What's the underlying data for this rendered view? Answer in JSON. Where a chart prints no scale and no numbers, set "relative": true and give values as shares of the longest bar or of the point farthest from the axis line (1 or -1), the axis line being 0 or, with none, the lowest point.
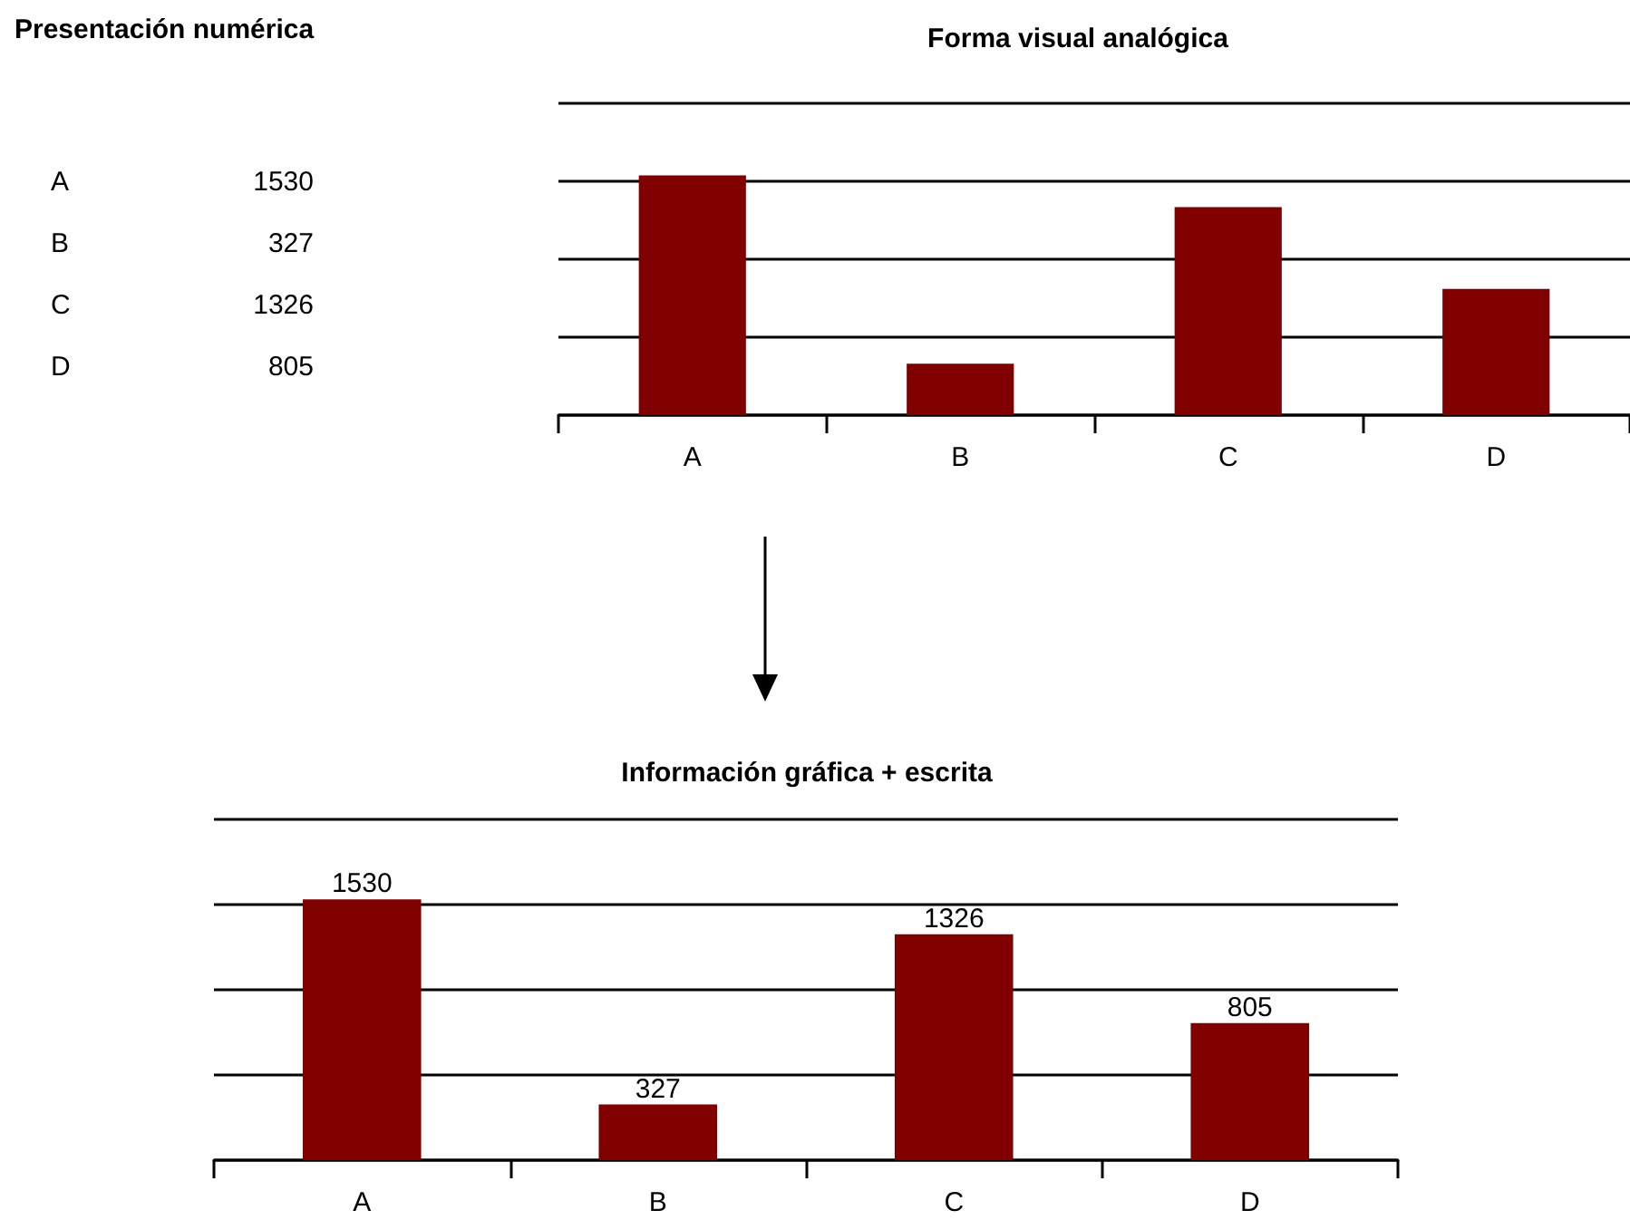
{
  "chart_data": [
    {
      "type": "other",
      "title": "Presentación numérica",
      "categories": [
        "A",
        "B",
        "C",
        "D"
      ],
      "values": [
        1530,
        327,
        1326,
        805
      ],
      "data_labels": true
    },
    {
      "type": "bar",
      "title": "Forma visual analógica",
      "categories": [
        "A",
        "B",
        "C",
        "D"
      ],
      "values": [
        1,
        0.214,
        0.867,
        0.526
      ],
      "color": "#800000",
      "relative": true,
      "grid": "y"
    },
    {
      "type": "bar",
      "title": "Información gráfica + escrita",
      "categories": [
        "A",
        "B",
        "C",
        "D"
      ],
      "values": [
        1530,
        327,
        1326,
        805
      ],
      "color": "#800000",
      "ylim": [
        0,
        2000
      ],
      "yticks": [
        {
          "value": 0,
          "label": null
        },
        {
          "value": 500,
          "label": null
        },
        {
          "value": 1000,
          "label": null
        },
        {
          "value": 1500,
          "label": null
        },
        {
          "value": 2000,
          "label": null
        }
      ],
      "tick_labels": "x",
      "grid": "y",
      "data_labels": true
    }
  ]
}
